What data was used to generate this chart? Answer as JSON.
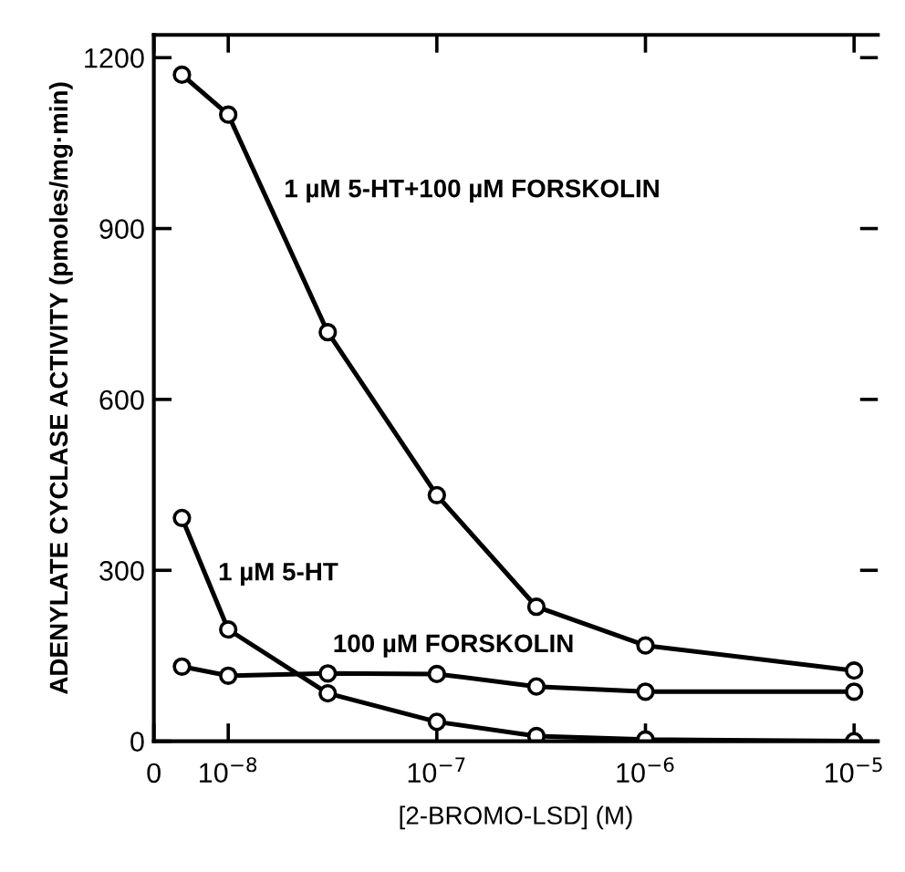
{
  "chart_data": {
    "type": "line",
    "xlabel": "[2-BROMO-LSD] (M)",
    "ylabel": "ADENYLATE CYCLASE ACTIVITY (pmoles/mg·min)",
    "log": "x",
    "x": [
      6e-09,
      1e-08,
      3e-08,
      1e-07,
      3e-07,
      1e-06,
      1e-05
    ],
    "series": [
      {
        "name": "1 µM 5-HT+100 µM FORSKOLIN",
        "color": "#000000",
        "values": [
          1170,
          1100,
          718,
          432,
          236,
          168,
          124
        ]
      },
      {
        "name": "100 µM FORSKOLIN",
        "color": "#000000",
        "values": [
          131,
          115,
          119,
          118,
          96,
          87,
          87
        ]
      },
      {
        "name": "1 µM 5-HT",
        "color": "#000000",
        "values": [
          392,
          196,
          84,
          34,
          9,
          3,
          0
        ]
      }
    ],
    "marker": "circle",
    "xlim": [
      4.4e-09,
      1.3e-05
    ],
    "xticks": [
      {
        "value": 4.4e-09,
        "label": "0"
      },
      {
        "value": 1e-08,
        "label": "10$^{−8}$"
      },
      {
        "value": 1e-07,
        "label": "10$^{−7}$"
      },
      {
        "value": 1e-06,
        "label": "10$^{−6}$"
      },
      {
        "value": 1e-05,
        "label": "10$^{−5}$"
      }
    ],
    "ylim": [
      0,
      1240
    ],
    "yticks": [
      0,
      300,
      600,
      900,
      1200
    ],
    "grid": false,
    "legend": false,
    "line_style": "solid"
  }
}
